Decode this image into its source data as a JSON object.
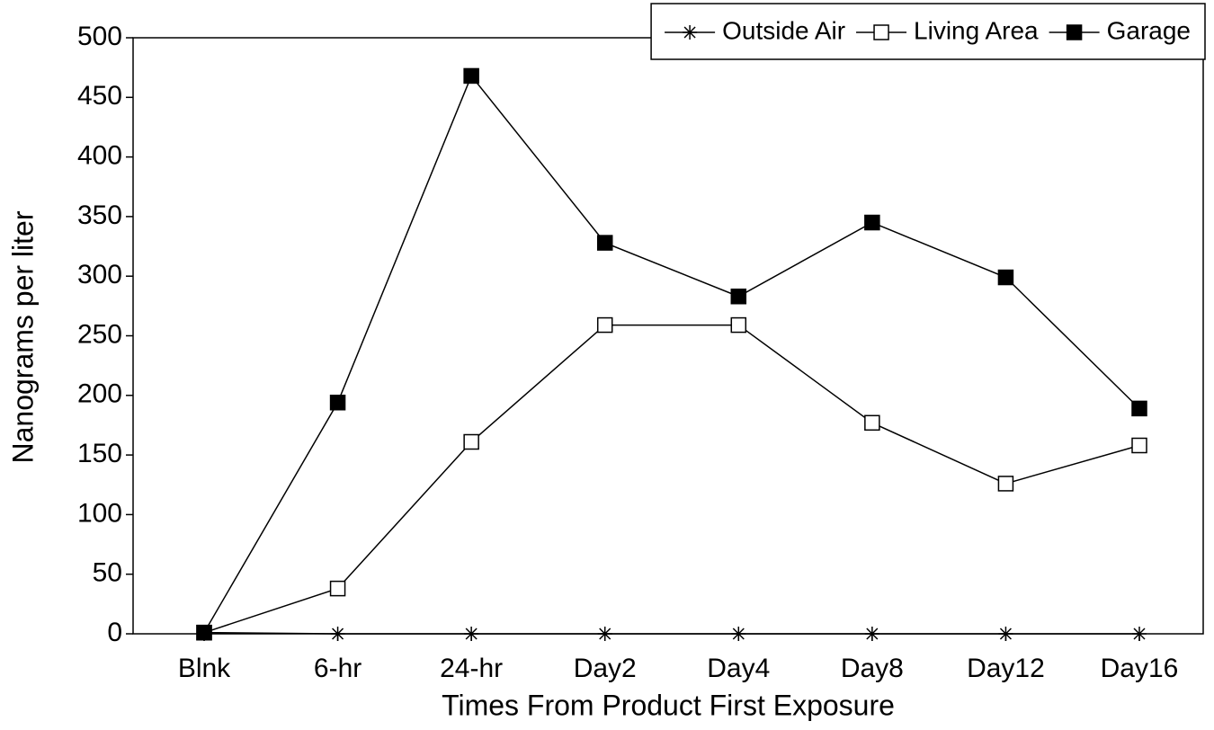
{
  "chart_data": {
    "type": "line",
    "x_label": "Times From Product First Exposure",
    "y_label": "Nanograms per liter",
    "categories": [
      "Blnk",
      "6-hr",
      "24-hr",
      "Day2",
      "Day4",
      "Day8",
      "Day12",
      "Day16"
    ],
    "series": [
      {
        "name": "Outside Air",
        "color": "#000000",
        "marker": "star",
        "values": [
          1,
          0,
          0,
          0,
          0,
          0,
          0,
          0
        ]
      },
      {
        "name": "Living Area",
        "color": "#000000",
        "marker": "open-square",
        "values": [
          1,
          38,
          161,
          259,
          259,
          177,
          126,
          158
        ]
      },
      {
        "name": "Garage",
        "color": "#000000",
        "marker": "filled-square",
        "values": [
          1,
          194,
          468,
          328,
          283,
          345,
          299,
          189
        ]
      }
    ],
    "ylim": [
      0,
      500
    ],
    "yticks": [
      0,
      50,
      100,
      150,
      200,
      250,
      300,
      350,
      400,
      450,
      500
    ],
    "grid": false,
    "legend": "upper right"
  }
}
